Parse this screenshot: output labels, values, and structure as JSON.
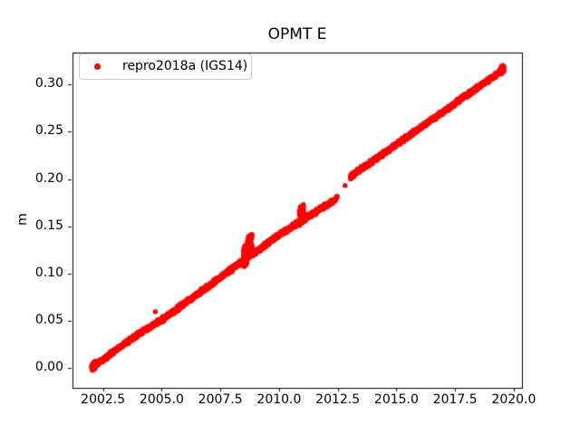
{
  "chart_data": {
    "type": "scatter",
    "title": "OPMT E",
    "xlabel": "",
    "ylabel": "m",
    "grid": false,
    "background_color": "#ffffff",
    "spine_color": "#000000",
    "tick_color": "#000000",
    "text_color": "#000000",
    "xlim": [
      2001.2,
      2020.35
    ],
    "ylim": [
      -0.0198,
      0.3342
    ],
    "x_ticks": [
      2002.5,
      2005.0,
      2007.5,
      2010.0,
      2012.5,
      2015.0,
      2017.5,
      2020.0
    ],
    "x_tick_labels": [
      "2002.5",
      "2005.0",
      "2007.5",
      "2010.0",
      "2012.5",
      "2015.0",
      "2017.5",
      "2020.0"
    ],
    "y_ticks": [
      0.0,
      0.05,
      0.1,
      0.15,
      0.2,
      0.25,
      0.3
    ],
    "y_tick_labels": [
      "0.00",
      "0.05",
      "0.10",
      "0.15",
      "0.20",
      "0.25",
      "0.30"
    ],
    "legend": {
      "position": "upper left",
      "frame_edge_color": "#cccccc",
      "entries": [
        {
          "label": "repro2018a (IGS14)",
          "color": "#ff0000",
          "marker": "dot"
        }
      ]
    },
    "series": [
      {
        "name": "repro2018a (IGS14)",
        "color": "#ff0000",
        "marker_radius_px": 2.7,
        "time_range": [
          2002.02,
          2019.58
        ],
        "sample_step_years": 0.005,
        "noise_sigma_m": 0.0011,
        "trend_control_points": [
          [
            2002.02,
            0.001
          ],
          [
            2004.0,
            0.036
          ],
          [
            2005.0,
            0.051
          ],
          [
            2008.0,
            0.105
          ],
          [
            2010.0,
            0.141
          ],
          [
            2012.45,
            0.179
          ],
          [
            2013.08,
            0.2035
          ],
          [
            2016.0,
            0.254
          ],
          [
            2019.58,
            0.316
          ]
        ],
        "data_gaps": [
          [
            2012.48,
            2013.04
          ]
        ],
        "sparse_ranges": [
          [
            2012.28,
            2012.48,
            0.45
          ]
        ],
        "dense_clusters": [
          {
            "t0": 2002.02,
            "t1": 2002.18,
            "y_lo": -0.004,
            "y_hi": 0.004,
            "n": 40
          },
          {
            "t0": 2008.45,
            "t1": 2008.63,
            "y_lo": -0.007,
            "y_hi": 0.015,
            "n": 70
          },
          {
            "t0": 2008.62,
            "t1": 2008.86,
            "y_lo": 0.004,
            "y_hi": 0.022,
            "n": 55
          },
          {
            "t0": 2010.86,
            "t1": 2011.06,
            "y_lo": -0.004,
            "y_hi": 0.016,
            "n": 55
          },
          {
            "t0": 2019.45,
            "t1": 2019.58,
            "y_lo": -0.003,
            "y_hi": 0.005,
            "n": 40
          }
        ],
        "outlier_points": [
          [
            2004.73,
            0.0597
          ],
          [
            2012.81,
            0.1932
          ]
        ]
      }
    ],
    "trend_summary": {
      "start_point": [
        2002.02,
        0.001
      ],
      "end_point": [
        2019.58,
        0.316
      ],
      "mean_slope_m_per_yr": 0.0179
    }
  }
}
